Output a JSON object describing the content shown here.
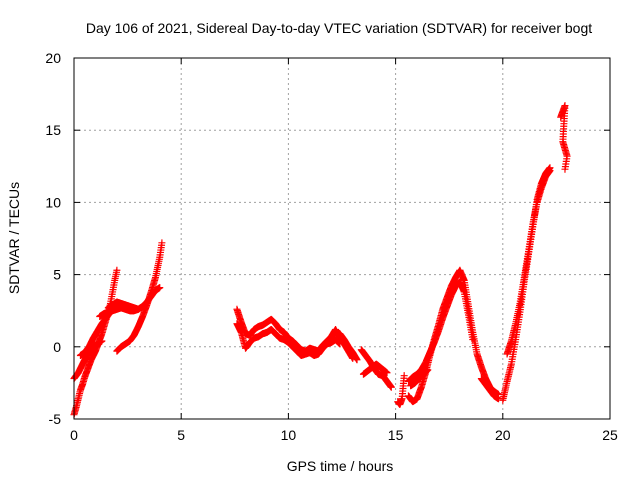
{
  "chart_data": {
    "type": "scatter",
    "title": "Day 106 of 2021, Sidereal Day-to-day VTEC variation (SDTVAR) for receiver bogt",
    "xlabel": "GPS time / hours",
    "ylabel": "SDTVAR / TECUs",
    "xlim": [
      0,
      25
    ],
    "ylim": [
      -5,
      20
    ],
    "xticks": [
      0,
      5,
      10,
      15,
      20,
      25
    ],
    "yticks": [
      -5,
      0,
      5,
      10,
      15,
      20
    ],
    "grid": true,
    "marker": "+",
    "color": "#ff0000",
    "series": [
      {
        "name": "SDTVAR",
        "segments": [
          {
            "x": [
              0.0,
              0.1,
              0.2,
              0.3,
              0.4,
              0.5,
              0.6,
              0.7,
              0.8,
              0.9,
              1.0,
              1.1,
              1.2,
              1.3,
              1.4,
              1.5,
              1.6,
              1.7,
              1.8,
              1.9,
              2.0
            ],
            "y": [
              -4.7,
              -4.2,
              -3.6,
              -3.0,
              -2.6,
              -2.1,
              -1.7,
              -1.3,
              -0.9,
              -0.6,
              -0.3,
              0.1,
              0.5,
              0.9,
              1.4,
              1.9,
              2.4,
              3.0,
              3.8,
              4.6,
              5.3
            ]
          },
          {
            "x": [
              0.0,
              0.1,
              0.2,
              0.3,
              0.4,
              0.5,
              0.6,
              0.7,
              0.8,
              0.9,
              1.0,
              1.1,
              1.2,
              1.3
            ],
            "y": [
              -2.2,
              -2.0,
              -1.8,
              -1.5,
              -1.2,
              -0.9,
              -0.6,
              -0.4,
              -0.2,
              0.0,
              0.1,
              0.2,
              0.3,
              0.4
            ]
          },
          {
            "x": [
              0.3,
              0.5,
              0.7,
              0.9,
              1.1,
              1.3,
              1.5,
              1.7,
              1.9,
              2.0
            ],
            "y": [
              -0.6,
              -0.4,
              0.0,
              0.6,
              1.1,
              1.6,
              2.0,
              2.4,
              2.8,
              3.0
            ]
          },
          {
            "x": [
              1.2,
              1.4,
              1.6,
              1.8,
              2.0,
              2.2,
              2.4,
              2.6,
              2.8,
              3.0,
              3.2,
              3.4,
              3.6,
              3.8,
              4.0
            ],
            "y": [
              2.1,
              2.3,
              2.4,
              2.5,
              2.6,
              2.7,
              2.6,
              2.5,
              2.5,
              2.6,
              2.8,
              3.1,
              3.5,
              3.9,
              4.1
            ]
          },
          {
            "x": [
              2.0,
              2.2,
              2.4,
              2.6,
              2.8,
              3.0,
              3.2,
              3.4,
              3.6,
              3.8,
              4.0,
              4.1
            ],
            "y": [
              -0.3,
              0.0,
              0.2,
              0.4,
              0.8,
              1.4,
              2.1,
              2.9,
              3.8,
              4.8,
              6.2,
              7.2
            ]
          },
          {
            "x": [
              1.6,
              1.8,
              2.0,
              2.2,
              2.4,
              2.6,
              2.8,
              3.0
            ],
            "y": [
              2.7,
              2.9,
              3.1,
              3.0,
              2.9,
              2.8,
              2.7,
              2.6
            ]
          },
          {
            "x": [
              7.6,
              7.8,
              8.0,
              8.2,
              8.4,
              8.6,
              8.8,
              9.0,
              9.2,
              9.4,
              9.6,
              9.8,
              10.0,
              10.2,
              10.4,
              10.6,
              10.8,
              11.0,
              11.2,
              11.4,
              11.6,
              11.8,
              12.0,
              12.2,
              12.4,
              12.6,
              12.8,
              13.0
            ],
            "y": [
              2.6,
              1.7,
              0.9,
              0.8,
              1.2,
              1.4,
              1.5,
              1.7,
              1.9,
              1.6,
              1.2,
              1.0,
              0.6,
              0.4,
              0.1,
              -0.2,
              -0.3,
              -0.1,
              -0.2,
              -0.3,
              0.1,
              0.4,
              0.7,
              1.2,
              0.6,
              0.2,
              -0.3,
              -0.8
            ]
          },
          {
            "x": [
              7.6,
              7.8,
              8.0,
              8.2,
              8.4,
              8.6,
              8.8,
              9.0,
              9.2,
              9.4,
              9.6,
              9.8,
              10.0,
              10.2,
              10.4,
              10.6,
              10.8,
              11.0,
              11.2,
              11.4,
              11.6,
              11.8,
              12.0,
              12.2,
              12.4
            ],
            "y": [
              1.6,
              1.0,
              -0.1,
              0.3,
              0.6,
              0.7,
              0.9,
              1.0,
              1.2,
              0.9,
              0.6,
              0.5,
              0.3,
              0.0,
              -0.3,
              -0.6,
              -0.5,
              -0.4,
              -0.6,
              -0.5,
              -0.1,
              0.2,
              0.3,
              0.5,
              0.2
            ]
          },
          {
            "x": [
              12.2,
              12.4,
              12.6,
              12.8,
              13.0,
              13.2
            ],
            "y": [
              1.0,
              0.9,
              0.5,
              0.0,
              -0.4,
              -0.9
            ]
          },
          {
            "x": [
              13.4,
              13.6,
              13.8,
              14.0,
              14.2,
              14.4,
              14.6,
              14.8
            ],
            "y": [
              -0.2,
              -0.6,
              -1.0,
              -1.5,
              -1.9,
              -2.0,
              -2.4,
              -2.8
            ]
          },
          {
            "x": [
              13.5,
              14.1,
              14.6
            ],
            "y": [
              -1.9,
              -1.2,
              -1.8
            ]
          },
          {
            "x": [
              15.1,
              15.2,
              15.3,
              15.4
            ],
            "y": [
              -3.8,
              -4.0,
              -3.6,
              -2.0
            ]
          },
          {
            "x": [
              15.6,
              15.8,
              16.0,
              16.2,
              16.4,
              16.6,
              16.8,
              17.0,
              17.2,
              17.4,
              17.6,
              17.8,
              18.0,
              18.2,
              18.4,
              18.6,
              18.8,
              19.0,
              19.2,
              19.4,
              19.6,
              19.8
            ],
            "y": [
              -3.4,
              -3.8,
              -3.6,
              -2.8,
              -1.8,
              -0.6,
              0.5,
              1.5,
              2.6,
              3.4,
              4.2,
              4.8,
              5.3,
              4.6,
              2.8,
              1.0,
              -0.5,
              -1.4,
              -2.2,
              -2.8,
              -3.1,
              -3.3
            ]
          },
          {
            "x": [
              15.6,
              15.8,
              16.0,
              16.2,
              16.4,
              16.6,
              16.8,
              17.0,
              17.2,
              17.4,
              17.6,
              17.8,
              18.0,
              18.2,
              18.4,
              18.6
            ],
            "y": [
              -2.4,
              -2.1,
              -1.9,
              -1.6,
              -1.1,
              -0.4,
              0.3,
              1.1,
              2.0,
              2.8,
              3.6,
              4.2,
              4.5,
              3.8,
              2.2,
              0.5
            ]
          },
          {
            "x": [
              15.7,
              15.9,
              16.1,
              16.3,
              16.5
            ],
            "y": [
              -2.7,
              -2.5,
              -2.2,
              -1.9,
              -1.6
            ]
          },
          {
            "x": [
              19.0,
              19.2,
              19.4,
              19.6,
              19.8
            ],
            "y": [
              -2.2,
              -2.6,
              -3.0,
              -3.4,
              -3.6
            ]
          },
          {
            "x": [
              20.0,
              20.2,
              20.4,
              20.6,
              20.8,
              21.0,
              21.2,
              21.4,
              21.6,
              21.8,
              22.0,
              22.2
            ],
            "y": [
              -3.7,
              -2.4,
              -1.2,
              0.5,
              2.4,
              4.5,
              6.4,
              8.3,
              10.2,
              11.3,
              12.0,
              12.4
            ]
          },
          {
            "x": [
              20.2,
              20.4,
              20.6,
              20.8,
              21.0,
              21.2,
              21.4,
              21.6,
              21.8,
              22.0,
              22.2
            ],
            "y": [
              -0.5,
              0.4,
              1.6,
              3.0,
              4.8,
              6.6,
              8.5,
              10.0,
              11.0,
              11.8,
              12.2
            ]
          },
          {
            "x": [
              22.7,
              22.8,
              22.9,
              22.8,
              22.9,
              23.0,
              22.9
            ],
            "y": [
              15.9,
              16.3,
              16.7,
              14.2,
              13.7,
              13.2,
              12.3
            ]
          }
        ]
      }
    ]
  }
}
